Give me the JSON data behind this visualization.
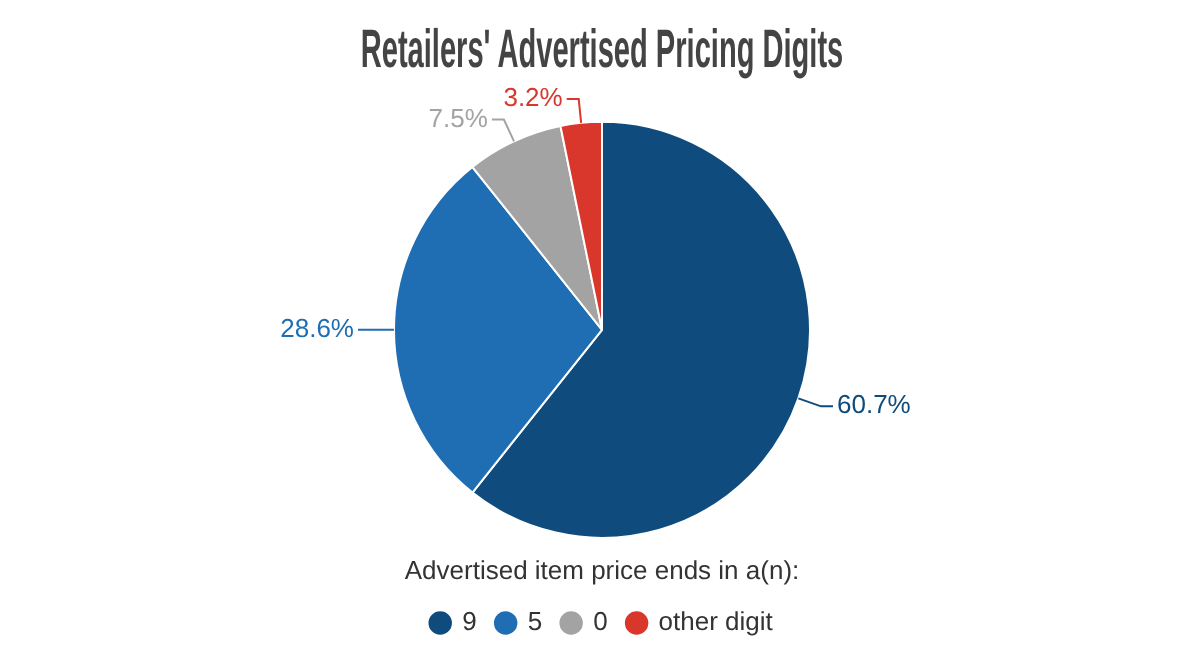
{
  "chart_data": {
    "type": "pie",
    "title": "Retailers' Advertised Pricing Digits",
    "legend_title": "Advertised item price ends in a(n):",
    "legend": "bottom",
    "categories": [
      "9",
      "5",
      "0",
      "other digit"
    ],
    "values": [
      60.7,
      28.6,
      7.5,
      3.2
    ],
    "colors": [
      "#0f4c7d",
      "#1f6db3",
      "#a3a3a3",
      "#d9372b"
    ],
    "value_labels": [
      "60.7%",
      "28.6%",
      "7.5%",
      "3.2%"
    ]
  }
}
